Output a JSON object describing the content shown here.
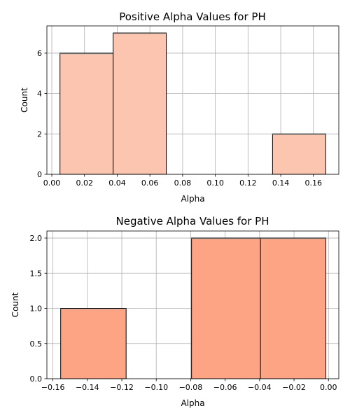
{
  "chart_data": [
    {
      "type": "bar",
      "title": "Positive Alpha Values for PH",
      "xlabel": "Alpha",
      "ylabel": "Count",
      "xlim": [
        -0.003,
        0.1755
      ],
      "ylim": [
        0,
        7.35
      ],
      "xticks": [
        0.0,
        0.02,
        0.04,
        0.06,
        0.08,
        0.1,
        0.12,
        0.14,
        0.16
      ],
      "xtick_labels": [
        "0.00",
        "0.02",
        "0.04",
        "0.06",
        "0.08",
        "0.10",
        "0.12",
        "0.14",
        "0.16"
      ],
      "yticks": [
        0,
        2,
        4,
        6
      ],
      "ytick_labels": [
        "0",
        "2",
        "4",
        "6"
      ],
      "bins": [
        {
          "x0": 0.005,
          "x1": 0.0375,
          "count": 6
        },
        {
          "x0": 0.0375,
          "x1": 0.07,
          "count": 7
        },
        {
          "x0": 0.07,
          "x1": 0.1025,
          "count": 0
        },
        {
          "x0": 0.1025,
          "x1": 0.135,
          "count": 0
        },
        {
          "x0": 0.135,
          "x1": 0.1675,
          "count": 2
        }
      ],
      "bar_color": "#fcc5b0",
      "grid": true
    },
    {
      "type": "bar",
      "title": "Negative Alpha Values for PH",
      "xlabel": "Alpha",
      "ylabel": "Count",
      "xlim": [
        -0.1635,
        0.006
      ],
      "ylim": [
        0,
        2.1
      ],
      "xticks": [
        -0.16,
        -0.14,
        -0.12,
        -0.1,
        -0.08,
        -0.06,
        -0.04,
        -0.02,
        0.0
      ],
      "xtick_labels": [
        "−0.16",
        "−0.14",
        "−0.12",
        "−0.10",
        "−0.08",
        "−0.06",
        "−0.04",
        "−0.02",
        "0.00"
      ],
      "yticks": [
        0.0,
        0.5,
        1.0,
        1.5,
        2.0
      ],
      "ytick_labels": [
        "0.0",
        "0.5",
        "1.0",
        "1.5",
        "2.0"
      ],
      "bins": [
        {
          "x0": -0.1555,
          "x1": -0.1175,
          "count": 1
        },
        {
          "x0": -0.1175,
          "x1": -0.0795,
          "count": 0
        },
        {
          "x0": -0.0795,
          "x1": -0.0395,
          "count": 2
        },
        {
          "x0": -0.0395,
          "x1": -0.0015,
          "count": 2
        }
      ],
      "bar_color": "#fca483",
      "grid": true
    }
  ]
}
